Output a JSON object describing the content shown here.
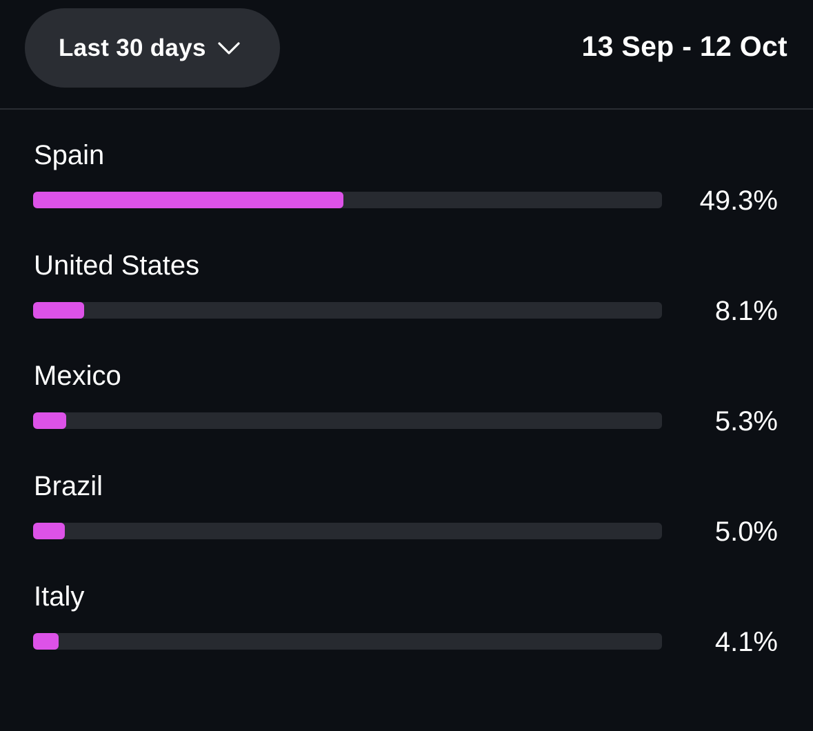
{
  "header": {
    "range_label": "Last 30 days",
    "date_range": "13 Sep - 12 Oct"
  },
  "colors": {
    "background": "#0c0f14",
    "pill": "#2a2d33",
    "track": "#272a30",
    "accent": "#dd52e8"
  },
  "countries": [
    {
      "name": "Spain",
      "percent": "49.3%",
      "value": 49.3
    },
    {
      "name": "United States",
      "percent": "8.1%",
      "value": 8.1
    },
    {
      "name": "Mexico",
      "percent": "5.3%",
      "value": 5.3
    },
    {
      "name": "Brazil",
      "percent": "5.0%",
      "value": 5.0
    },
    {
      "name": "Italy",
      "percent": "4.1%",
      "value": 4.1
    }
  ]
}
